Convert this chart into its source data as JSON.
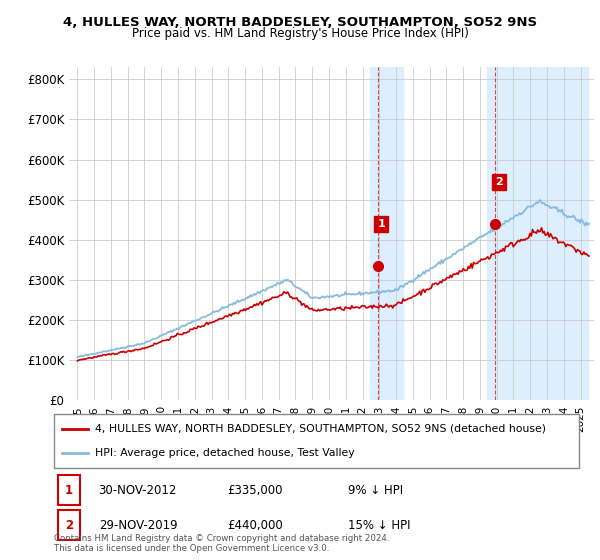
{
  "title": "4, HULLES WAY, NORTH BADDESLEY, SOUTHAMPTON, SO52 9NS",
  "subtitle": "Price paid vs. HM Land Registry's House Price Index (HPI)",
  "legend_line1": "4, HULLES WAY, NORTH BADDESLEY, SOUTHAMPTON, SO52 9NS (detached house)",
  "legend_line2": "HPI: Average price, detached house, Test Valley",
  "annotation1_date": "30-NOV-2012",
  "annotation1_price": "£335,000",
  "annotation1_hpi": "9% ↓ HPI",
  "annotation2_date": "29-NOV-2019",
  "annotation2_price": "£440,000",
  "annotation2_hpi": "15% ↓ HPI",
  "footer": "Contains HM Land Registry data © Crown copyright and database right 2024.\nThis data is licensed under the Open Government Licence v3.0.",
  "red_color": "#cc0000",
  "blue_color": "#88bbdd",
  "highlight_color": "#ddeeff",
  "highlight_line_color": "#cc0000",
  "ylim": [
    0,
    830000
  ],
  "yticks": [
    0,
    100000,
    200000,
    300000,
    400000,
    500000,
    600000,
    700000,
    800000
  ],
  "ytick_labels": [
    "£0",
    "£100K",
    "£200K",
    "£300K",
    "£400K",
    "£500K",
    "£600K",
    "£700K",
    "£800K"
  ],
  "sale1_x": 2012.92,
  "sale1_y": 335000,
  "sale2_x": 2019.92,
  "sale2_y": 440000,
  "highlight1_x": 2012.92,
  "highlight2_x": 2019.92,
  "xmin": 1994.5,
  "xmax": 2025.8
}
